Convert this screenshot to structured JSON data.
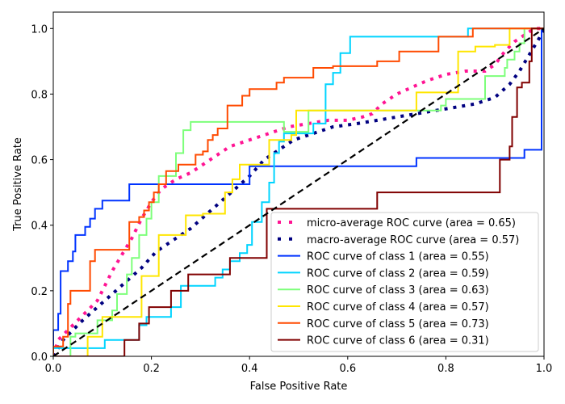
{
  "chart_data": {
    "type": "line",
    "title": "",
    "xlabel": "False Positive Rate",
    "ylabel": "True Positive Rate",
    "xlim": [
      0.0,
      1.0
    ],
    "ylim": [
      0.0,
      1.05
    ],
    "grid": false,
    "legend_position": "lower-right",
    "xticks": [
      0.0,
      0.2,
      0.4,
      0.6,
      0.8,
      1.0
    ],
    "xtick_labels": [
      "0.0",
      "0.2",
      "0.4",
      "0.6",
      "0.8",
      "1.0"
    ],
    "yticks": [
      0.0,
      0.2,
      0.4,
      0.6,
      0.8,
      1.0
    ],
    "ytick_labels": [
      "0.0",
      "0.2",
      "0.4",
      "0.6",
      "0.8",
      "1.0"
    ],
    "reference_line": {
      "name": "chance",
      "x": [
        0,
        1
      ],
      "y": [
        0,
        1
      ],
      "color": "#000000",
      "style": "dashed"
    },
    "series": [
      {
        "name": "micro-average ROC curve (area = 0.65)",
        "color": "#ff1493",
        "style": "dotted",
        "width": 4,
        "x": [
          0.0,
          0.01,
          0.03,
          0.05,
          0.07,
          0.09,
          0.1,
          0.12,
          0.14,
          0.16,
          0.18,
          0.2,
          0.22,
          0.25,
          0.28,
          0.3,
          0.33,
          0.36,
          0.4,
          0.44,
          0.48,
          0.52,
          0.56,
          0.6,
          0.63,
          0.65,
          0.67,
          0.7,
          0.73,
          0.76,
          0.8,
          0.84,
          0.88,
          0.9,
          0.92,
          0.94,
          0.96,
          0.98,
          1.0
        ],
        "y": [
          0.0,
          0.05,
          0.08,
          0.11,
          0.14,
          0.17,
          0.2,
          0.26,
          0.31,
          0.36,
          0.42,
          0.47,
          0.51,
          0.54,
          0.56,
          0.58,
          0.61,
          0.64,
          0.66,
          0.68,
          0.7,
          0.71,
          0.72,
          0.72,
          0.73,
          0.74,
          0.77,
          0.8,
          0.82,
          0.84,
          0.86,
          0.87,
          0.87,
          0.89,
          0.93,
          0.96,
          0.98,
          1.0,
          1.0
        ]
      },
      {
        "name": "macro-average ROC curve (area = 0.57)",
        "color": "#000080",
        "style": "dotted",
        "width": 4,
        "x": [
          0.0,
          0.02,
          0.04,
          0.06,
          0.09,
          0.12,
          0.15,
          0.18,
          0.21,
          0.25,
          0.28,
          0.31,
          0.34,
          0.37,
          0.4,
          0.43,
          0.46,
          0.49,
          0.53,
          0.57,
          0.62,
          0.66,
          0.7,
          0.74,
          0.78,
          0.82,
          0.86,
          0.9,
          0.93,
          0.95,
          0.97,
          0.99,
          1.0
        ],
        "y": [
          0.0,
          0.05,
          0.08,
          0.11,
          0.15,
          0.19,
          0.23,
          0.27,
          0.32,
          0.36,
          0.39,
          0.43,
          0.47,
          0.51,
          0.55,
          0.6,
          0.63,
          0.66,
          0.68,
          0.7,
          0.71,
          0.72,
          0.73,
          0.74,
          0.75,
          0.76,
          0.77,
          0.79,
          0.83,
          0.87,
          0.92,
          0.97,
          1.0
        ]
      },
      {
        "name": "ROC curve of class 1 (area = 0.55)",
        "color": "#0033ff",
        "style": "solid",
        "width": 2,
        "x": [
          0.0,
          0.0,
          0.01,
          0.01,
          0.015,
          0.015,
          0.03,
          0.03,
          0.04,
          0.04,
          0.045,
          0.045,
          0.065,
          0.065,
          0.075,
          0.075,
          0.085,
          0.085,
          0.1,
          0.1,
          0.155,
          0.155,
          0.4,
          0.4,
          0.74,
          0.74,
          0.96,
          0.96,
          0.995,
          0.995
        ],
        "y": [
          0.0,
          0.08,
          0.08,
          0.13,
          0.13,
          0.26,
          0.26,
          0.29,
          0.29,
          0.32,
          0.32,
          0.37,
          0.37,
          0.395,
          0.395,
          0.42,
          0.42,
          0.45,
          0.45,
          0.475,
          0.475,
          0.525,
          0.525,
          0.58,
          0.58,
          0.605,
          0.605,
          0.63,
          0.63,
          1.0
        ]
      },
      {
        "name": "ROC curve of class 2 (area = 0.59)",
        "color": "#00d4ff",
        "style": "solid",
        "width": 2,
        "x": [
          0.0,
          0.0,
          0.105,
          0.105,
          0.175,
          0.175,
          0.19,
          0.19,
          0.24,
          0.24,
          0.26,
          0.26,
          0.33,
          0.33,
          0.345,
          0.345,
          0.36,
          0.36,
          0.38,
          0.38,
          0.395,
          0.395,
          0.405,
          0.405,
          0.425,
          0.425,
          0.44,
          0.44,
          0.45,
          0.45,
          0.46,
          0.46,
          0.47,
          0.47,
          0.53,
          0.53,
          0.555,
          0.555,
          0.57,
          0.57,
          0.585,
          0.585,
          0.605,
          0.605,
          0.845,
          0.845,
          1.0
        ],
        "y": [
          0.0,
          0.025,
          0.025,
          0.05,
          0.05,
          0.095,
          0.095,
          0.12,
          0.12,
          0.15,
          0.15,
          0.215,
          0.215,
          0.24,
          0.24,
          0.265,
          0.265,
          0.29,
          0.29,
          0.315,
          0.315,
          0.34,
          0.34,
          0.41,
          0.41,
          0.47,
          0.47,
          0.53,
          0.53,
          0.62,
          0.62,
          0.655,
          0.655,
          0.68,
          0.68,
          0.71,
          0.71,
          0.83,
          0.83,
          0.865,
          0.865,
          0.925,
          0.925,
          0.975,
          0.975,
          1.0,
          1.0
        ]
      },
      {
        "name": "ROC curve of class 3 (area = 0.63)",
        "color": "#7dff7a",
        "style": "solid",
        "width": 2,
        "x": [
          0.0,
          0.035,
          0.035,
          0.045,
          0.045,
          0.09,
          0.09,
          0.12,
          0.12,
          0.13,
          0.13,
          0.15,
          0.15,
          0.16,
          0.16,
          0.175,
          0.175,
          0.19,
          0.19,
          0.2,
          0.2,
          0.215,
          0.215,
          0.25,
          0.25,
          0.265,
          0.265,
          0.28,
          0.28,
          0.47,
          0.47,
          0.52,
          0.52,
          0.79,
          0.79,
          0.8,
          0.8,
          0.88,
          0.88,
          0.92,
          0.92,
          0.925,
          0.925,
          0.94,
          0.94,
          0.95,
          0.95,
          0.96,
          0.96,
          1.0
        ],
        "y": [
          0.0,
          0.0,
          0.06,
          0.06,
          0.07,
          0.07,
          0.11,
          0.11,
          0.14,
          0.14,
          0.19,
          0.19,
          0.25,
          0.25,
          0.3,
          0.3,
          0.37,
          0.37,
          0.42,
          0.42,
          0.47,
          0.47,
          0.55,
          0.55,
          0.62,
          0.62,
          0.69,
          0.69,
          0.715,
          0.715,
          0.685,
          0.685,
          0.75,
          0.75,
          0.765,
          0.765,
          0.785,
          0.785,
          0.855,
          0.855,
          0.88,
          0.88,
          0.905,
          0.905,
          0.93,
          0.93,
          0.955,
          0.955,
          1.0,
          1.0
        ]
      },
      {
        "name": "ROC curve of class 4 (area = 0.57)",
        "color": "#ffe600",
        "style": "solid",
        "width": 2,
        "x": [
          0.0,
          0.07,
          0.07,
          0.1,
          0.1,
          0.18,
          0.18,
          0.215,
          0.215,
          0.27,
          0.27,
          0.305,
          0.305,
          0.35,
          0.35,
          0.365,
          0.365,
          0.38,
          0.38,
          0.44,
          0.44,
          0.485,
          0.485,
          0.495,
          0.495,
          0.74,
          0.74,
          0.825,
          0.825,
          0.86,
          0.86,
          0.9,
          0.9,
          0.93,
          0.93,
          1.0
        ],
        "y": [
          0.0,
          0.0,
          0.06,
          0.06,
          0.12,
          0.12,
          0.245,
          0.245,
          0.37,
          0.37,
          0.43,
          0.43,
          0.435,
          0.435,
          0.5,
          0.5,
          0.54,
          0.54,
          0.585,
          0.585,
          0.66,
          0.66,
          0.675,
          0.675,
          0.75,
          0.75,
          0.805,
          0.805,
          0.93,
          0.93,
          0.945,
          0.945,
          0.95,
          0.95,
          1.0,
          1.0
        ]
      },
      {
        "name": "ROC curve of class 5 (area = 0.73)",
        "color": "#ff4a00",
        "style": "solid",
        "width": 2,
        "x": [
          0.0,
          0.0,
          0.02,
          0.02,
          0.03,
          0.03,
          0.035,
          0.035,
          0.075,
          0.075,
          0.085,
          0.085,
          0.1,
          0.1,
          0.155,
          0.155,
          0.175,
          0.175,
          0.185,
          0.185,
          0.195,
          0.195,
          0.205,
          0.205,
          0.215,
          0.215,
          0.23,
          0.23,
          0.255,
          0.255,
          0.29,
          0.29,
          0.305,
          0.305,
          0.315,
          0.315,
          0.325,
          0.325,
          0.335,
          0.335,
          0.355,
          0.355,
          0.385,
          0.385,
          0.4,
          0.4,
          0.455,
          0.455,
          0.47,
          0.47,
          0.53,
          0.53,
          0.57,
          0.57,
          0.66,
          0.66,
          0.705,
          0.705,
          0.785,
          0.785,
          0.855,
          0.855,
          1.0
        ],
        "y": [
          0.0,
          0.03,
          0.03,
          0.06,
          0.06,
          0.16,
          0.16,
          0.2,
          0.2,
          0.29,
          0.29,
          0.325,
          0.325,
          0.325,
          0.325,
          0.41,
          0.41,
          0.425,
          0.425,
          0.445,
          0.445,
          0.47,
          0.47,
          0.5,
          0.5,
          0.525,
          0.525,
          0.565,
          0.565,
          0.585,
          0.585,
          0.615,
          0.615,
          0.625,
          0.625,
          0.66,
          0.66,
          0.675,
          0.675,
          0.695,
          0.695,
          0.765,
          0.765,
          0.795,
          0.795,
          0.815,
          0.815,
          0.835,
          0.835,
          0.85,
          0.85,
          0.88,
          0.88,
          0.885,
          0.885,
          0.9,
          0.9,
          0.93,
          0.93,
          0.975,
          0.975,
          1.0,
          1.0
        ]
      },
      {
        "name": "ROC curve of class 6 (area = 0.31)",
        "color": "#800000",
        "style": "solid",
        "width": 2,
        "x": [
          0.0,
          0.145,
          0.145,
          0.175,
          0.175,
          0.195,
          0.195,
          0.215,
          0.215,
          0.24,
          0.24,
          0.275,
          0.275,
          0.36,
          0.36,
          0.435,
          0.435,
          0.66,
          0.66,
          0.91,
          0.91,
          0.93,
          0.93,
          0.935,
          0.935,
          0.945,
          0.945,
          0.955,
          0.955,
          0.97,
          0.97,
          0.975,
          0.975,
          1.0
        ],
        "y": [
          0.0,
          0.0,
          0.05,
          0.05,
          0.1,
          0.1,
          0.15,
          0.15,
          0.15,
          0.15,
          0.2,
          0.2,
          0.25,
          0.25,
          0.3,
          0.3,
          0.45,
          0.45,
          0.5,
          0.5,
          0.6,
          0.6,
          0.64,
          0.64,
          0.73,
          0.73,
          0.82,
          0.82,
          0.835,
          0.835,
          0.9,
          0.9,
          1.0,
          1.0
        ]
      }
    ]
  }
}
